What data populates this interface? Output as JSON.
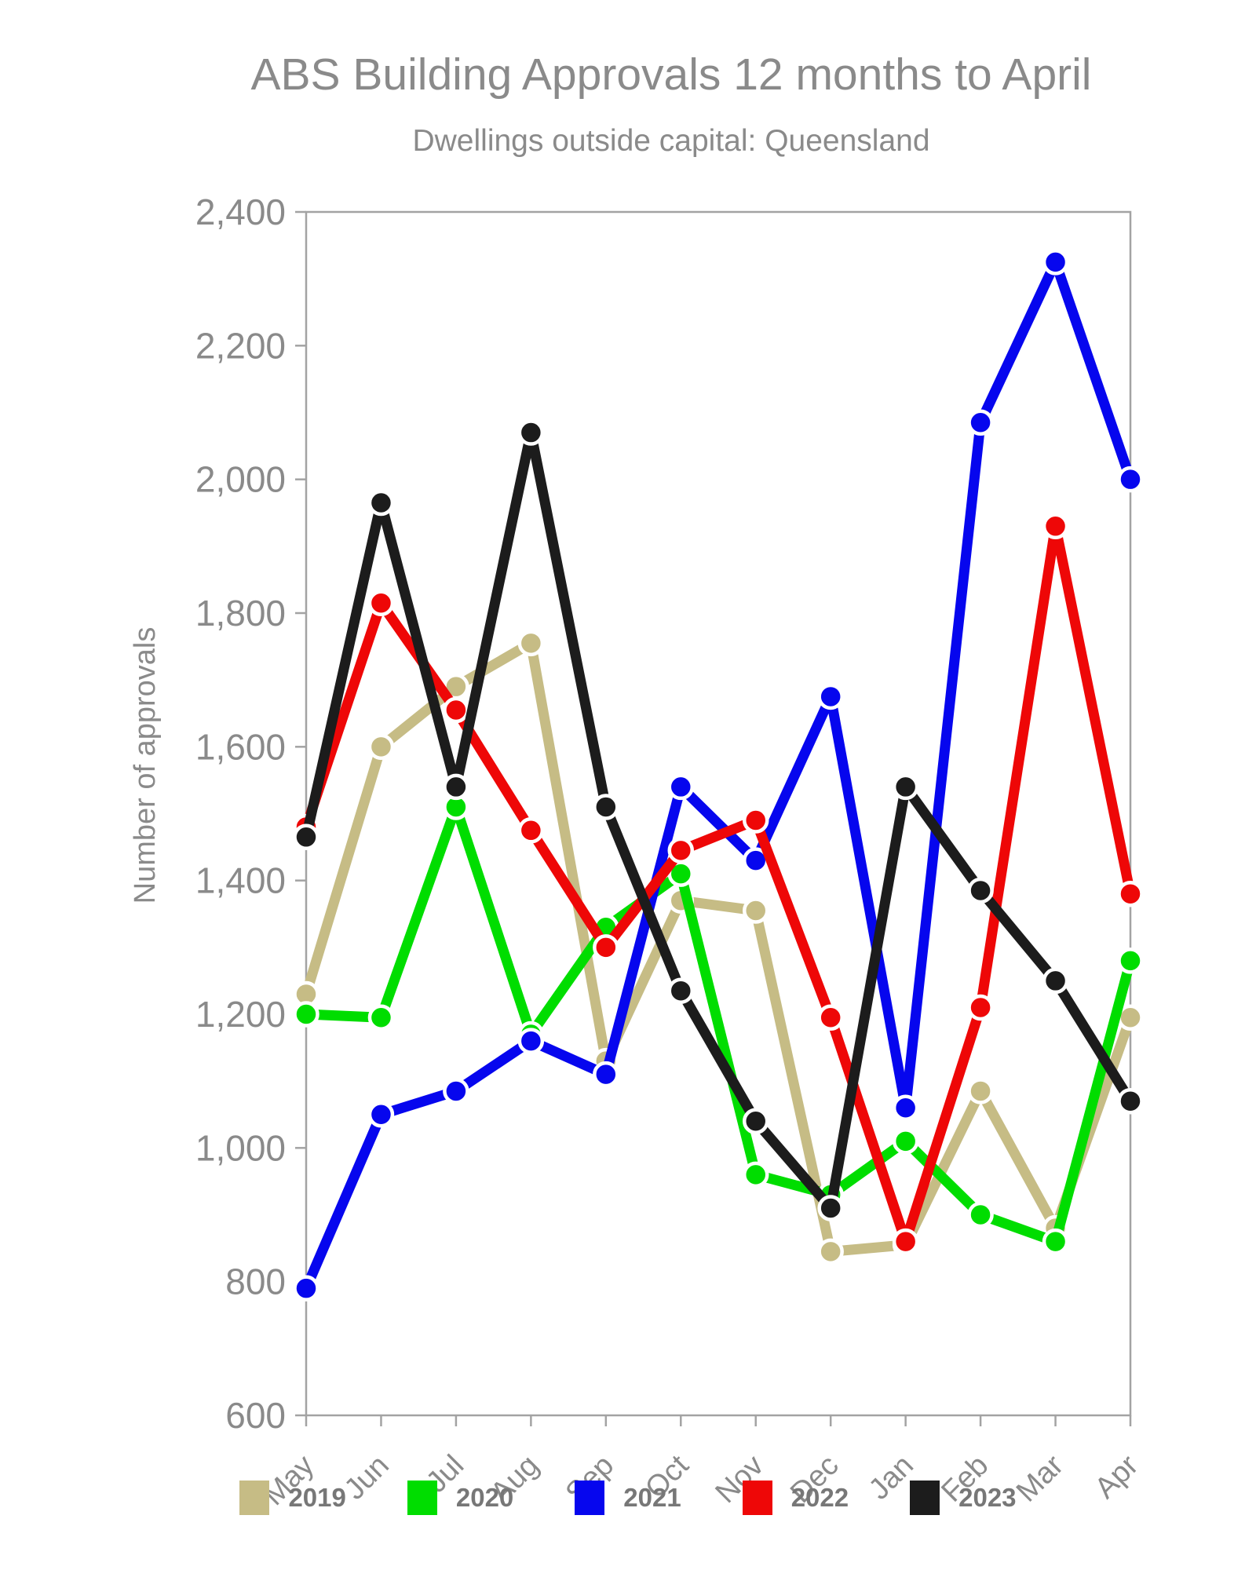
{
  "header": {
    "title": "ABS Building Approvals 12 months to April",
    "subtitle": "Dwellings outside capital: Queensland",
    "text_color": "#8a8a8a"
  },
  "chart_data": {
    "type": "line",
    "title": "ABS Building Approvals 12 months to April",
    "subtitle": "Dwellings outside capital: Queensland",
    "xlabel": "",
    "ylabel": "Number of approvals",
    "categories": [
      "May",
      "Jun",
      "Jul",
      "Aug",
      "Sep",
      "Oct",
      "Nov",
      "Dec",
      "Jan",
      "Feb",
      "Mar",
      "Apr"
    ],
    "series": [
      {
        "name": "2019",
        "color": "#c6bc85",
        "values": [
          1230,
          1600,
          1690,
          1755,
          1130,
          1370,
          1355,
          845,
          855,
          1085,
          880,
          1195
        ]
      },
      {
        "name": "2020",
        "color": "#00dd00",
        "values": [
          1200,
          1195,
          1510,
          1170,
          1330,
          1410,
          960,
          930,
          1010,
          900,
          860,
          1280
        ]
      },
      {
        "name": "2021",
        "color": "#0606ee",
        "values": [
          790,
          1050,
          1085,
          1160,
          1110,
          1540,
          1430,
          1675,
          1060,
          2085,
          2325,
          2000
        ]
      },
      {
        "name": "2022",
        "color": "#ee0707",
        "values": [
          1480,
          1815,
          1655,
          1475,
          1300,
          1445,
          1490,
          1195,
          860,
          1210,
          1930,
          1380
        ]
      },
      {
        "name": "2023",
        "color": "#1c1c1c",
        "values": [
          1465,
          1965,
          1540,
          2070,
          1510,
          1235,
          1040,
          910,
          1540,
          1385,
          1250,
          1070
        ]
      }
    ],
    "ylim": [
      600,
      2400
    ],
    "yticks": [
      600,
      800,
      1000,
      1200,
      1400,
      1600,
      1800,
      2000,
      2200,
      2400
    ],
    "grid": false,
    "legend_position": "bottom",
    "axis_color": "#a3a3a3",
    "tick_label_color": "#8a8a8a"
  }
}
